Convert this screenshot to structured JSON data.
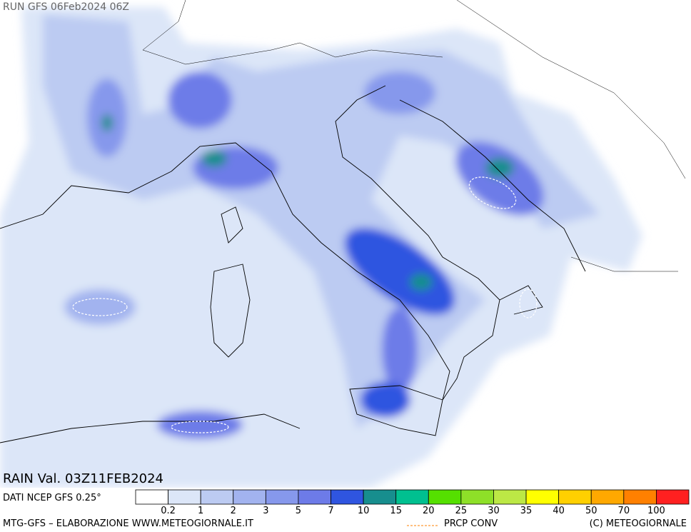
{
  "header": {
    "run": "RUN GFS 06Feb2024 06Z"
  },
  "map": {
    "variable": "RAIN Val. 03Z11FEB2024"
  },
  "legend": {
    "source": "DATI NCEP GFS 0.25°",
    "labels": [
      0.2,
      1,
      2,
      3,
      5,
      7,
      10,
      15,
      20,
      25,
      30,
      35,
      40,
      50,
      70,
      100
    ],
    "colors": [
      "#ffffff",
      "#dce6f8",
      "#bccbf2",
      "#a2b3ef",
      "#8698ec",
      "#6d7be8",
      "#2f55e0",
      "#178e8e",
      "#00c090",
      "#55e000",
      "#8ee028",
      "#bce845",
      "#ffff00",
      "#ffd000",
      "#ffa800",
      "#ff8000",
      "#ff2020"
    ]
  },
  "footer": {
    "credit": "MTG-GFS – ELABORAZIONE WWW.METEOGIORNALE.IT",
    "conv": "PRCP CONV",
    "copyright": "(C) METEOGIORNALE"
  }
}
